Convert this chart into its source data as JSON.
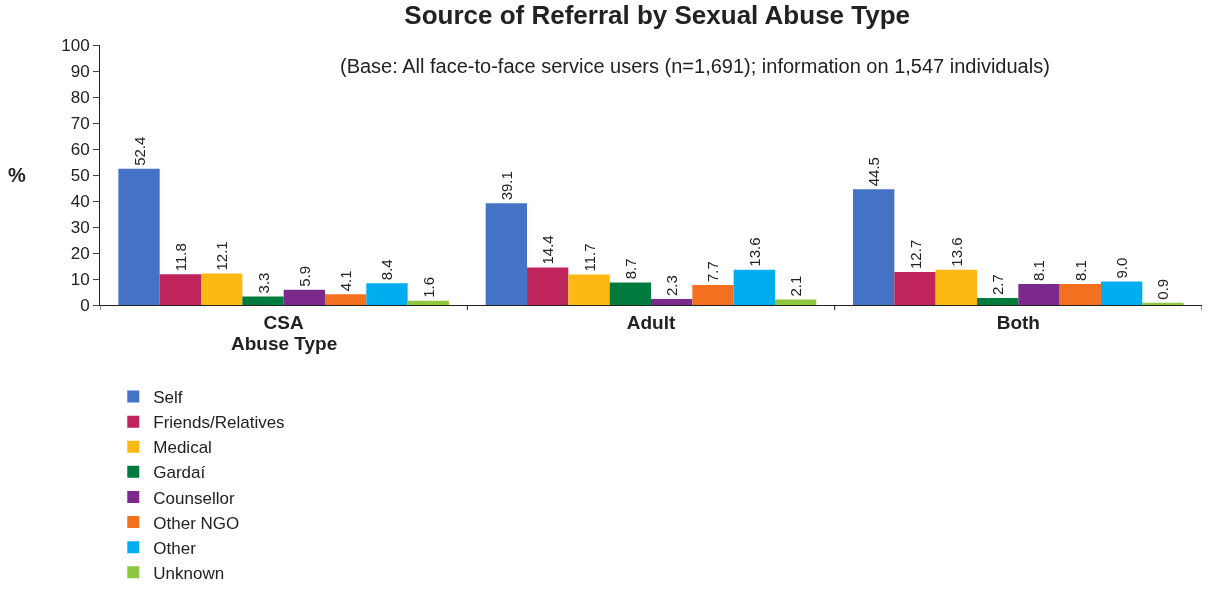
{
  "chart_data": {
    "type": "bar",
    "title": "Source of Referral by Sexual Abuse Type",
    "subtitle": "(Base: All face-to-face service users (n=1,691); information on 1,547 individuals)",
    "xlabel": "Abuse Type",
    "ylabel": "%",
    "categories": [
      "CSA",
      "Adult",
      "Both"
    ],
    "series": [
      {
        "name": "Self",
        "color": "#4472c4",
        "values": [
          52.4,
          39.1,
          44.5
        ]
      },
      {
        "name": "Friends/Relatives",
        "color": "#c0245c",
        "values": [
          11.8,
          14.4,
          12.7
        ]
      },
      {
        "name": "Medical",
        "color": "#fdb813",
        "values": [
          12.1,
          11.7,
          13.6
        ]
      },
      {
        "name": "Gardaí",
        "color": "#007a3d",
        "values": [
          3.3,
          8.7,
          2.7
        ]
      },
      {
        "name": "Counsellor",
        "color": "#7b2a8c",
        "values": [
          5.9,
          2.3,
          8.1
        ]
      },
      {
        "name": "Other NGO",
        "color": "#f37021",
        "values": [
          4.1,
          7.7,
          8.1
        ]
      },
      {
        "name": "Other",
        "color": "#00aeef",
        "values": [
          8.4,
          13.6,
          9.0
        ]
      },
      {
        "name": "Unknown",
        "color": "#8dc63f",
        "values": [
          1.6,
          2.1,
          0.9
        ]
      }
    ],
    "value_labels": [
      [
        "52.4",
        "39.1",
        "44.5"
      ],
      [
        "11.8",
        "14.4",
        "12.7"
      ],
      [
        "12.1",
        "11.7",
        "13.6"
      ],
      [
        "3.3",
        "8.7",
        "2.7"
      ],
      [
        "5.9",
        "2.3",
        "8.1"
      ],
      [
        "4.1",
        "7.7",
        "8.1"
      ],
      [
        "8.4",
        "13.6",
        "9.0"
      ],
      [
        "1.6",
        "2.1",
        "0.9"
      ]
    ],
    "ylim": [
      0,
      100
    ],
    "yticks": [
      0,
      10,
      20,
      30,
      40,
      50,
      60,
      70,
      80,
      90,
      100
    ],
    "legend": "bottom"
  }
}
